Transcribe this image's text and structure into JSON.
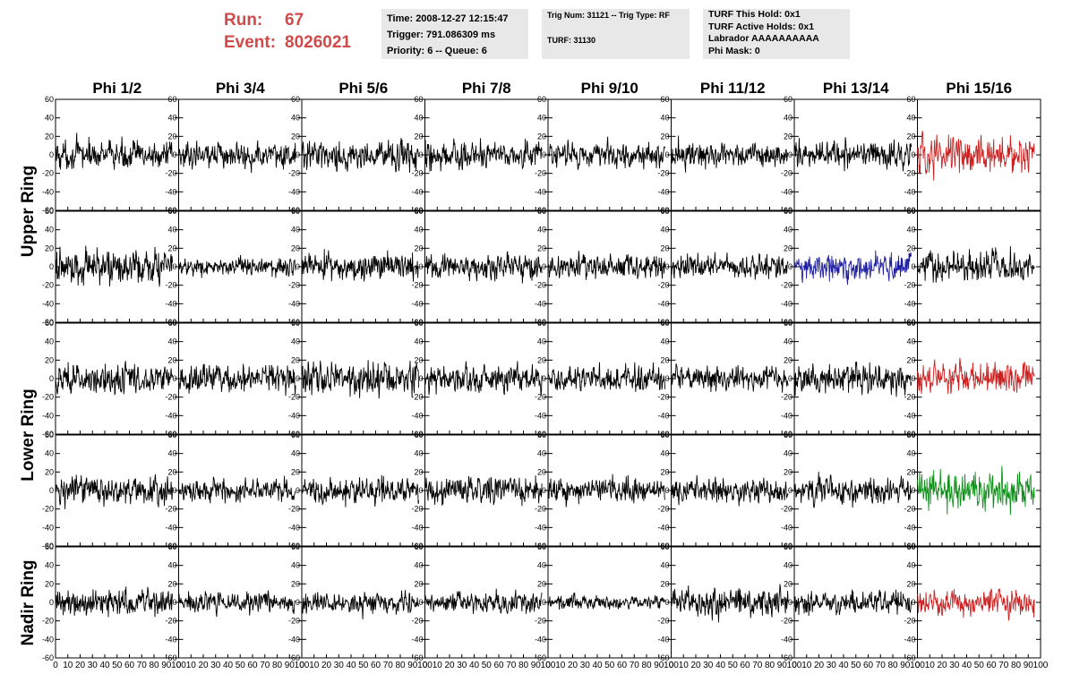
{
  "header": {
    "run_label": "Run:",
    "run_value": "67",
    "event_label": "Event:",
    "event_value": "8026021",
    "box1": [
      "Time: 2008-12-27 12:15:47",
      "Trigger: 791.086309 ms",
      "Priority: 6 -- Queue: 6"
    ],
    "box2": [
      "Trig Num: 31121 -- Trig Type: RF",
      "TURF: 31130"
    ],
    "box3": [
      "TURF This Hold: 0x1",
      "TURF Active Holds: 0x1",
      "Labrador AAAAAAAAAA",
      "Phi Mask: 0"
    ]
  },
  "colors": {
    "background": "#ffffff",
    "header_run": "#d04a4a",
    "info_box": "#e8e8e8",
    "trace_default": "#000000",
    "trace_red": "#cc2020",
    "trace_blue": "#2020a0",
    "trace_green": "#10901a"
  },
  "chart_data": {
    "type": "line",
    "columns": [
      "Phi 1/2",
      "Phi 3/4",
      "Phi 5/6",
      "Phi 7/8",
      "Phi 9/10",
      "Phi 11/12",
      "Phi 13/14",
      "Phi 15/16"
    ],
    "ring_labels": [
      "Upper Ring",
      "Lower Ring",
      "Nadir Ring"
    ],
    "rows": 5,
    "xlim": [
      0,
      100
    ],
    "ylim": [
      -60,
      60
    ],
    "x_tick_labels": [
      "0",
      "10",
      "20",
      "30",
      "40",
      "50",
      "60",
      "70",
      "80",
      "90",
      "100"
    ],
    "y_tick_labels": [
      "60",
      "40",
      "20",
      "0",
      "-20",
      "-40",
      "-60"
    ],
    "samples_per_trace": 260,
    "amplitude_rms": [
      [
        12,
        11,
        12,
        12,
        11,
        11,
        12,
        16
      ],
      [
        15,
        8,
        12,
        11,
        11,
        10,
        11,
        13
      ],
      [
        13,
        12,
        14,
        12,
        11,
        11,
        13,
        13
      ],
      [
        12,
        10,
        11,
        12,
        10,
        10,
        11,
        16
      ],
      [
        12,
        9,
        9,
        9,
        6,
        12,
        11,
        11
      ]
    ],
    "trace_colors": [
      [
        "default",
        "default",
        "default",
        "default",
        "default",
        "default",
        "default",
        "red"
      ],
      [
        "default",
        "default",
        "default",
        "default",
        "default",
        "default",
        "blue",
        "default"
      ],
      [
        "default",
        "default",
        "default",
        "default",
        "default",
        "default",
        "default",
        "red"
      ],
      [
        "default",
        "default",
        "default",
        "default",
        "default",
        "default",
        "default",
        "green"
      ],
      [
        "default",
        "default",
        "default",
        "default",
        "default",
        "default",
        "default",
        "red"
      ]
    ]
  }
}
